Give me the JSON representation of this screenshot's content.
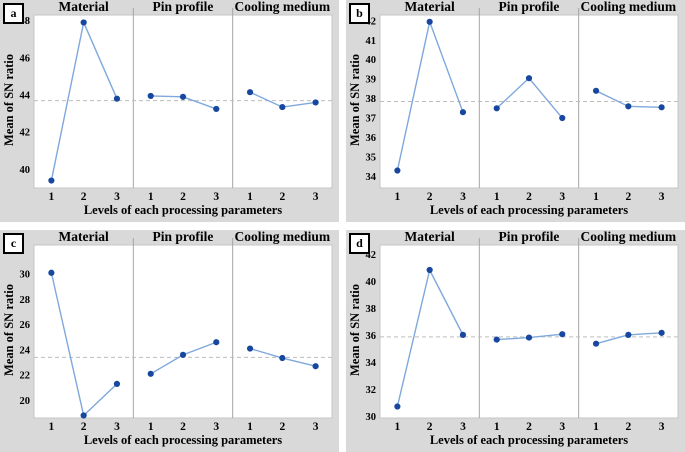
{
  "figure": {
    "ylabel": "Mean of SN ratio",
    "xlabel": "Levels of each processing parameters",
    "section_titles": [
      "Material",
      "Pin profile",
      "Cooling medium"
    ],
    "level_labels": [
      "1",
      "2",
      "3"
    ],
    "colors": {
      "background": "#ffffff",
      "panel_bg": "#d9d9d9",
      "plot_bg": "#ffffff",
      "plot_border": "#c6c6c6",
      "section_divider": "#a6a6a6",
      "mean_line": "#bdbdbd",
      "line": "#7fa8dc",
      "marker": "#17479e",
      "text": "#000000"
    }
  },
  "chart_data": [
    {
      "panel": "a",
      "type": "line",
      "title_sections": [
        "Material",
        "Pin profile",
        "Cooling medium"
      ],
      "categories": [
        "1",
        "2",
        "3"
      ],
      "ylabel": "Mean of SN ratio",
      "xlabel": "Levels of each processing parameters",
      "yticks": [
        40,
        42,
        44,
        46,
        48
      ],
      "ylim": [
        39.0,
        48.3
      ],
      "mean_line": 43.7,
      "grid": false,
      "series": [
        {
          "name": "Material",
          "values": [
            39.4,
            47.9,
            43.8
          ]
        },
        {
          "name": "Pin profile",
          "values": [
            43.95,
            43.9,
            43.25
          ]
        },
        {
          "name": "Cooling medium",
          "values": [
            44.15,
            43.35,
            43.6
          ]
        }
      ]
    },
    {
      "panel": "b",
      "type": "line",
      "title_sections": [
        "Material",
        "Pin profile",
        "Cooling medium"
      ],
      "categories": [
        "1",
        "2",
        "3"
      ],
      "ylabel": "Mean of SN ratio",
      "xlabel": "Levels of each processing parameters",
      "yticks": [
        34,
        35,
        36,
        37,
        38,
        39,
        40,
        41,
        42
      ],
      "ylim": [
        33.4,
        42.3
      ],
      "mean_line": 37.85,
      "grid": false,
      "series": [
        {
          "name": "Material",
          "values": [
            34.3,
            41.95,
            37.3
          ]
        },
        {
          "name": "Pin profile",
          "values": [
            37.5,
            39.05,
            37.0
          ]
        },
        {
          "name": "Cooling medium",
          "values": [
            38.4,
            37.6,
            37.55
          ]
        }
      ]
    },
    {
      "panel": "c",
      "type": "line",
      "title_sections": [
        "Material",
        "Pin profile",
        "Cooling medium"
      ],
      "categories": [
        "1",
        "2",
        "3"
      ],
      "ylabel": "Mean of SN ratio",
      "xlabel": "Levels of each processing parameters",
      "yticks": [
        20,
        22,
        24,
        26,
        28,
        30
      ],
      "ylim": [
        18.6,
        32.3
      ],
      "mean_line": 23.4,
      "grid": false,
      "series": [
        {
          "name": "Material",
          "values": [
            30.1,
            18.8,
            21.3
          ]
        },
        {
          "name": "Pin profile",
          "values": [
            22.1,
            23.6,
            24.6
          ]
        },
        {
          "name": "Cooling medium",
          "values": [
            24.1,
            23.35,
            22.7
          ]
        }
      ]
    },
    {
      "panel": "d",
      "type": "line",
      "title_sections": [
        "Material",
        "Pin profile",
        "Cooling medium"
      ],
      "categories": [
        "1",
        "2",
        "3"
      ],
      "ylabel": "Mean of SN ratio",
      "xlabel": "Levels of each processing parameters",
      "yticks": [
        30,
        32,
        34,
        36,
        38,
        40,
        42
      ],
      "ylim": [
        29.9,
        42.7
      ],
      "mean_line": 35.9,
      "grid": false,
      "series": [
        {
          "name": "Material",
          "values": [
            30.75,
            40.85,
            36.05
          ]
        },
        {
          "name": "Pin profile",
          "values": [
            35.7,
            35.85,
            36.1
          ]
        },
        {
          "name": "Cooling medium",
          "values": [
            35.4,
            36.05,
            36.2
          ]
        }
      ]
    }
  ]
}
